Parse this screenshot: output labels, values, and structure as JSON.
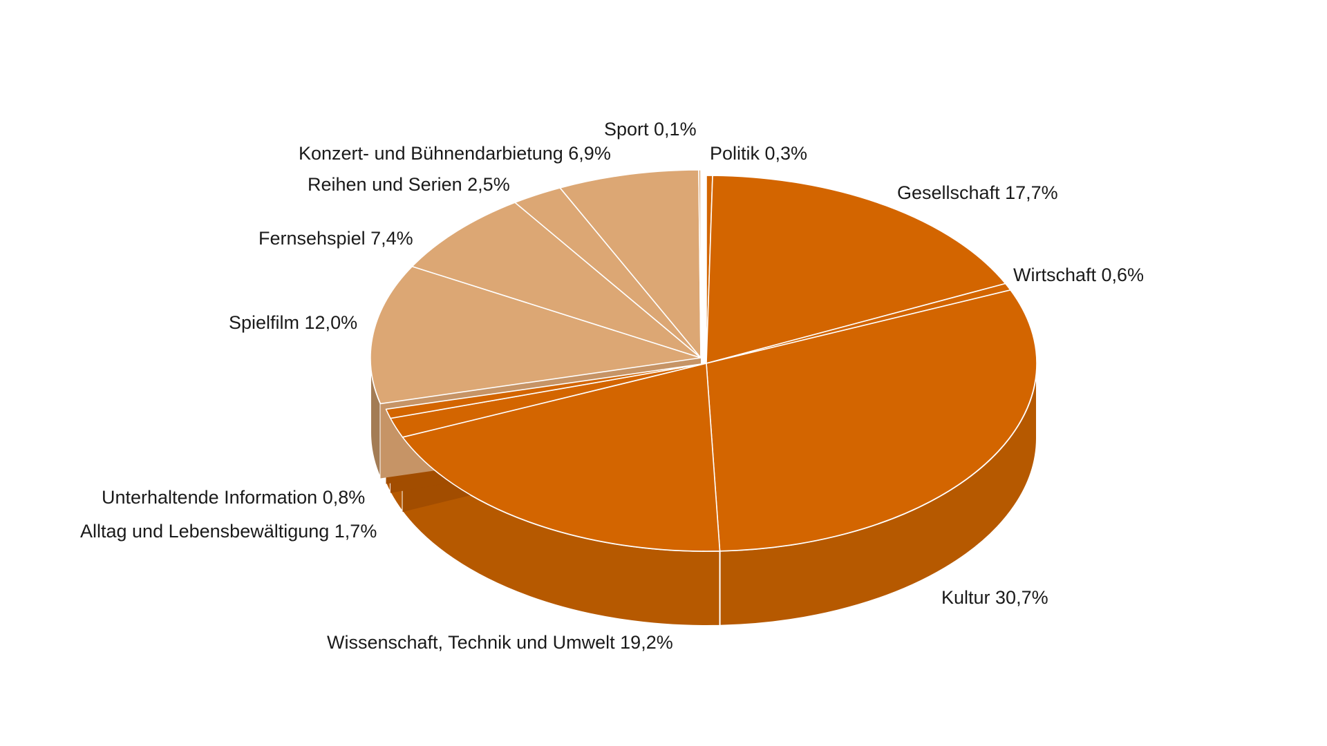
{
  "chart_data": {
    "type": "pie",
    "style": "3d-exploded",
    "title": "",
    "unit": "%",
    "decimal_separator": ",",
    "slices": [
      {
        "label": "Politik",
        "value": 0.3,
        "group": "orange"
      },
      {
        "label": "Gesellschaft",
        "value": 17.7,
        "group": "orange"
      },
      {
        "label": "Wirtschaft",
        "value": 0.6,
        "group": "orange"
      },
      {
        "label": "Kultur",
        "value": 30.7,
        "group": "orange"
      },
      {
        "label": "Wissenschaft, Technik und Umwelt",
        "value": 19.2,
        "group": "orange"
      },
      {
        "label": "Alltag und Lebensbewältigung",
        "value": 1.7,
        "group": "orange"
      },
      {
        "label": "Unterhaltende Information",
        "value": 0.8,
        "group": "orange"
      },
      {
        "label": "Spielfilm",
        "value": 12.0,
        "group": "tan"
      },
      {
        "label": "Fernsehspiel",
        "value": 7.4,
        "group": "tan"
      },
      {
        "label": "Reihen und Serien",
        "value": 2.5,
        "group": "tan"
      },
      {
        "label": "Konzert- und Bühnendarbietung",
        "value": 6.9,
        "group": "tan"
      },
      {
        "label": "Sport",
        "value": 0.1,
        "group": "tan"
      }
    ],
    "legend": "none (direct labels)"
  },
  "colors": {
    "orange_top": "#D36500",
    "orange_side_dark": "#9A4A00",
    "orange_side_light": "#B65900",
    "orange_cut": "#A24D00",
    "tan_top": "#DCA774",
    "tan_side": "#A37C55",
    "tan_cut": "#C69466",
    "separator": "#FFFFFF"
  },
  "labels": {
    "sport": "Sport 0,1%",
    "politik": "Politik 0,3%",
    "konzert": "Konzert- und Bühnendarbietung 6,9%",
    "reihen": "Reihen und Serien 2,5%",
    "gesellschaft": "Gesellschaft 17,7%",
    "fernsehspiel": "Fernsehspiel 7,4%",
    "wirtschaft": "Wirtschaft 0,6%",
    "spielfilm": "Spielfilm 12,0%",
    "unterhaltende": "Unterhaltende Information 0,8%",
    "alltag": "Alltag und Lebensbewältigung 1,7%",
    "kultur": "Kultur 30,7%",
    "wissenschaft": "Wissenschaft, Technik und Umwelt 19,2%"
  }
}
